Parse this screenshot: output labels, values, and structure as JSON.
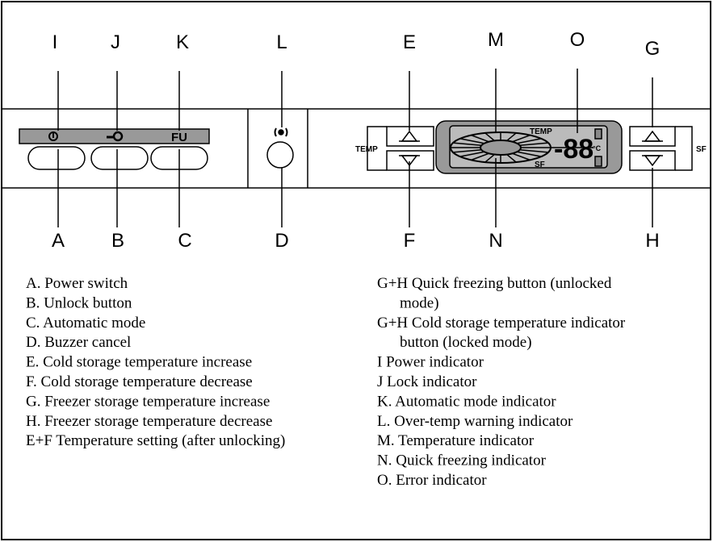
{
  "callouts_top": [
    "I",
    "J",
    "K",
    "L",
    "E",
    "M",
    "O",
    "G"
  ],
  "callouts_bottom": [
    "A",
    "B",
    "C",
    "D",
    "F",
    "N",
    "H"
  ],
  "panel": {
    "fu": "FU",
    "temp": "TEMP",
    "sf": "SF",
    "display_temp": "TEMP",
    "display_sf": "SF",
    "digits": "-88",
    "unit": "°C"
  },
  "legend_left": [
    "A. Power switch",
    "B. Unlock button",
    "C.  Automatic mode",
    "D. Buzzer cancel",
    "E. Cold storage temperature increase",
    "F. Cold storage temperature decrease",
    "G. Freezer storage temperature increase",
    "H. Freezer storage temperature decrease",
    "E+F  Temperature setting (after unlocking)"
  ],
  "legend_right": [
    {
      "lines": [
        "G+H Quick freezing button (unlocked",
        "mode)"
      ]
    },
    {
      "lines": [
        "G+H Cold storage temperature indicator",
        "button (locked mode)"
      ]
    },
    {
      "lines": [
        "I  Power indicator"
      ]
    },
    {
      "lines": [
        "J  Lock indicator"
      ]
    },
    {
      "lines": [
        "K. Automatic mode indicator"
      ]
    },
    {
      "lines": [
        "L. Over-temp warning indicator"
      ]
    },
    {
      "lines": [
        "M. Temperature indicator"
      ]
    },
    {
      "lines": [
        "N. Quick freezing indicator"
      ]
    },
    {
      "lines": [
        "O. Error indicator"
      ]
    }
  ]
}
